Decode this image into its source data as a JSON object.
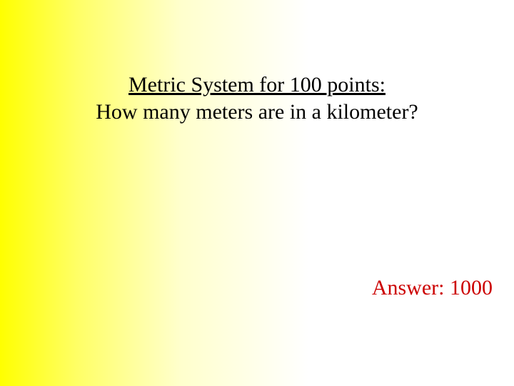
{
  "slide": {
    "background_gradient": {
      "direction": "to right",
      "stops": [
        "#ffff00",
        "#ffff66",
        "#ffffcc",
        "#ffffff"
      ]
    },
    "question": {
      "title": "Metric System for 100 points:",
      "text": "How many meters are in a kilometer?",
      "title_fontsize": 30,
      "text_fontsize": 30,
      "text_color": "#000000",
      "title_underline": true
    },
    "answer": {
      "label": "Answer: ",
      "value": "1000",
      "full_text": "Answer: 1000",
      "fontsize": 30,
      "text_color": "#cc0000"
    },
    "font_family": "Times New Roman"
  }
}
